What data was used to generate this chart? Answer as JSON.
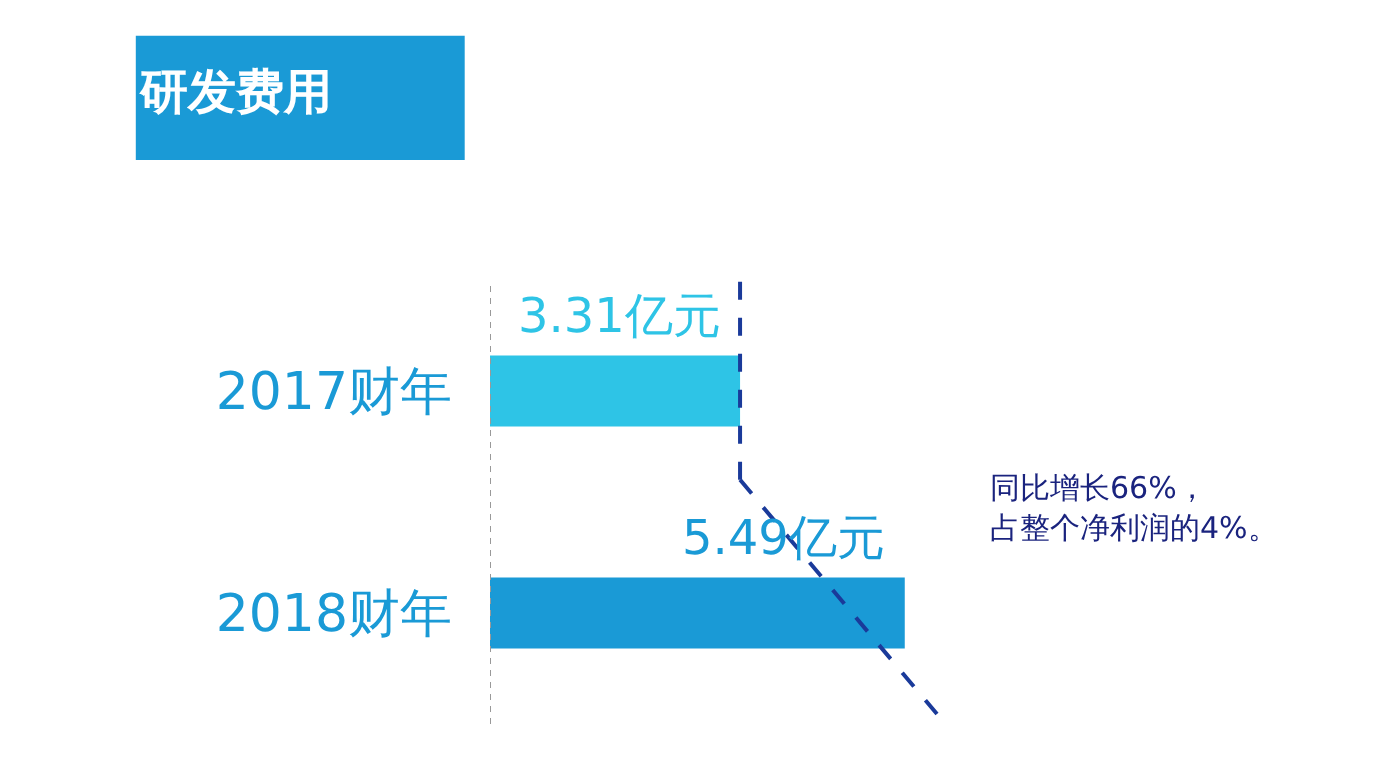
{
  "chart_data": {
    "type": "bar",
    "orientation": "horizontal",
    "title": "研发费用",
    "categories": [
      "2017财年",
      "2018财年"
    ],
    "values": [
      3.31,
      5.49
    ],
    "colors": [
      "#2ec4e6",
      "#1a9ad6"
    ],
    "value_labels": [
      "3.31亿元",
      "5.49亿元"
    ],
    "annotations": [
      "同比增长66%，",
      "占整个净利润的4%。"
    ],
    "tick_labels": "y",
    "legend": false
  }
}
